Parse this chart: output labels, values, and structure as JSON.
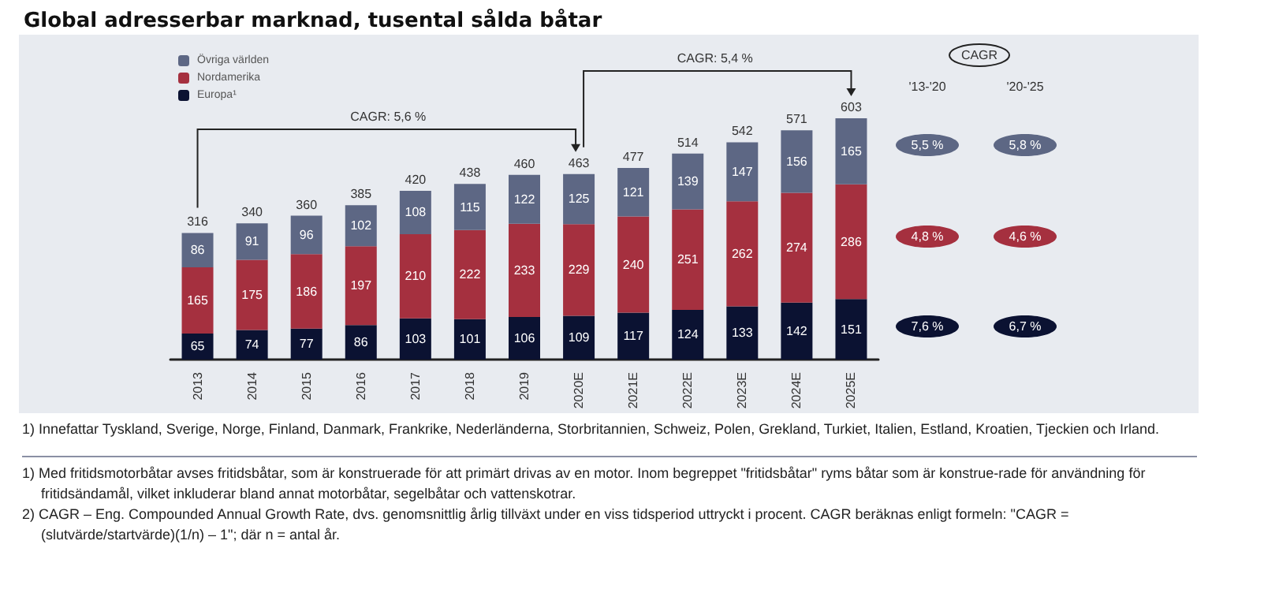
{
  "chart_data": {
    "type": "bar",
    "title": "Global adresserbar marknad, tusental sålda båtar",
    "stacked": true,
    "data_labels": true,
    "legend": "top left",
    "categories": [
      "2013",
      "2014",
      "2015",
      "2016",
      "2017",
      "2018",
      "2019",
      "2020E",
      "2021E",
      "2022E",
      "2023E",
      "2024E",
      "2025E"
    ],
    "series": [
      {
        "name": "Europa¹",
        "color": "#0b1232",
        "values": [
          65,
          74,
          77,
          86,
          103,
          101,
          106,
          109,
          117,
          124,
          133,
          142,
          151
        ]
      },
      {
        "name": "Nordamerika",
        "color": "#a5303f",
        "values": [
          165,
          175,
          186,
          197,
          210,
          222,
          233,
          229,
          240,
          251,
          262,
          274,
          286
        ]
      },
      {
        "name": "Övriga världen",
        "color": "#5d6784",
        "values": [
          86,
          91,
          96,
          102,
          108,
          115,
          122,
          125,
          121,
          139,
          147,
          156,
          165
        ]
      }
    ],
    "totals": [
      "316",
      "340",
      "360",
      "385",
      "420",
      "438",
      "460",
      "463",
      "477",
      "514",
      "542",
      "571",
      "603"
    ],
    "annotations": [
      "CAGR: 5,6 %",
      "CAGR: 5,4 %",
      "CAGR",
      "'13-'20",
      "'20-'25",
      "5,5 %",
      "5,8 %",
      "4,8 %",
      "4,6 %",
      "7,6 %",
      "6,7 %",
      "1) Innefattar Tyskland, Sverige, Norge, Finland, Danmark, Frankrike, Nederländerna, Storbritannien, Schweiz, Polen, Grekland, Turkiet, Italien, Estland, Kroatien, Tjeckien och Irland.",
      "1) Med fritidsmotorbåtar avses fritidsbåtar, som är konstruerade för att primärt drivas av en motor. Inom begreppet \"fritidsbåtar\" ryms båtar som är konstrue-rade för användning för fritidsändamål, vilket inkluderar bland annat motorbåtar, segelbåtar och vattenskotrar.",
      "2) CAGR – Eng. Compounded Annual Growth Rate, dvs. genomsnittlig årlig tillväxt under en viss tidsperiod uttryckt i procent. CAGR beräknas enligt formeln: \"CAGR = (slutvärde/startvärde)(1/n) – 1\"; där n = antal år."
    ]
  }
}
